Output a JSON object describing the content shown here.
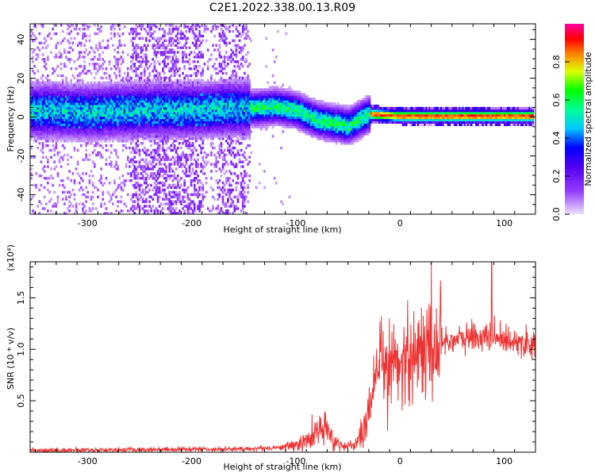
{
  "title": "C2E1.2022.338.00.13.R09",
  "chart_data": [
    {
      "type": "heatmap",
      "name": "spectrogram",
      "xlabel": "Height of straight line (km)",
      "ylabel": "Frequency (Hz)",
      "xlim": [
        -355,
        130
      ],
      "ylim": [
        -50,
        48
      ],
      "xticks": [
        -300,
        -200,
        -100,
        0,
        100
      ],
      "yticks": [
        -40,
        -20,
        0,
        20,
        40
      ],
      "colorbar": {
        "label": "Normalized spectral amplitude",
        "range": [
          0,
          1
        ],
        "ticks": [
          0.0,
          0.2,
          0.4,
          0.6,
          0.8
        ],
        "colors": [
          "#f0f0ff",
          "#6600ff",
          "#0000ff",
          "#00ffff",
          "#00ff00",
          "#ffff00",
          "#ff0000",
          "#ff00aa"
        ]
      },
      "ridge": {
        "x": [
          -355,
          -300,
          -250,
          -200,
          -160,
          -140,
          -120,
          -100,
          -80,
          -60,
          -50,
          -40,
          -30,
          0,
          50,
          100,
          130
        ],
        "y": [
          3,
          2,
          3,
          3,
          4,
          4,
          5,
          3,
          -2,
          -4,
          -5,
          -2,
          1,
          0,
          0,
          0,
          0
        ]
      }
    },
    {
      "type": "line",
      "name": "snr",
      "xlabel": "Height of straight line (km)",
      "ylabel": "SNR (10 * v/v)",
      "yscale_note": "(x10⁴)",
      "xlim": [
        -355,
        130
      ],
      "ylim": [
        0,
        1.85
      ],
      "xticks": [
        -300,
        -200,
        -100,
        0,
        100
      ],
      "yticks": [
        0.5,
        1.0,
        1.5
      ],
      "color": "#ee3333",
      "envelope": {
        "x": [
          -355,
          -300,
          -200,
          -150,
          -110,
          -90,
          -80,
          -70,
          -60,
          -45,
          -35,
          -28,
          -20,
          -10,
          0,
          20,
          40,
          60,
          80,
          100,
          130
        ],
        "y": [
          0.02,
          0.02,
          0.03,
          0.03,
          0.05,
          0.1,
          0.2,
          0.2,
          0.08,
          0.05,
          0.2,
          0.5,
          0.75,
          0.85,
          0.9,
          1.0,
          1.08,
          1.1,
          1.12,
          1.1,
          1.05
        ]
      }
    }
  ]
}
